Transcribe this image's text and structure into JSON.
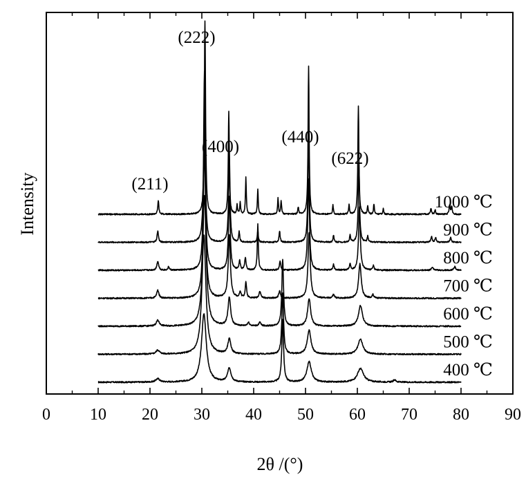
{
  "chart_data": {
    "type": "line",
    "title": "",
    "xlabel": "2θ /(°)",
    "ylabel": "Intensity",
    "xlim": [
      0,
      90
    ],
    "xticks": [
      0,
      10,
      20,
      30,
      40,
      50,
      60,
      70,
      80,
      90
    ],
    "x_range": [
      10,
      80
    ],
    "grid": false,
    "legend": "none",
    "line_color": "#000000",
    "series": [
      {
        "name": "400 ℃",
        "baseline": 0.0,
        "peaks": [
          [
            21.5,
            0.03,
            0.45
          ],
          [
            30.4,
            0.6,
            0.55
          ],
          [
            35.3,
            0.12,
            0.4
          ],
          [
            45.6,
            0.55,
            0.2
          ],
          [
            50.7,
            0.18,
            0.5
          ],
          [
            60.6,
            0.12,
            0.7
          ],
          [
            67.2,
            0.02,
            0.3
          ]
        ]
      },
      {
        "name": "500 ℃",
        "baseline": 0.4,
        "peaks": [
          [
            21.5,
            0.035,
            0.4
          ],
          [
            30.4,
            1.05,
            0.45
          ],
          [
            35.3,
            0.13,
            0.35
          ],
          [
            45.6,
            0.54,
            0.2
          ],
          [
            50.7,
            0.21,
            0.42
          ],
          [
            60.6,
            0.13,
            0.55
          ]
        ]
      },
      {
        "name": "600 ℃",
        "baseline": 0.8,
        "peaks": [
          [
            21.5,
            0.05,
            0.35
          ],
          [
            30.5,
            1.15,
            0.4
          ],
          [
            35.3,
            0.25,
            0.3
          ],
          [
            39.0,
            0.03,
            0.25
          ],
          [
            41.2,
            0.03,
            0.25
          ],
          [
            45.6,
            0.58,
            0.2
          ],
          [
            50.7,
            0.24,
            0.35
          ],
          [
            60.6,
            0.18,
            0.45
          ]
        ]
      },
      {
        "name": "700 ℃",
        "baseline": 1.2,
        "peaks": [
          [
            21.5,
            0.07,
            0.25
          ],
          [
            30.5,
            1.3,
            0.28
          ],
          [
            35.3,
            0.55,
            0.25
          ],
          [
            37.4,
            0.05,
            0.2
          ],
          [
            38.5,
            0.14,
            0.15
          ],
          [
            41.2,
            0.06,
            0.2
          ],
          [
            45.0,
            0.06,
            0.2
          ],
          [
            50.7,
            0.58,
            0.25
          ],
          [
            55.4,
            0.03,
            0.2
          ],
          [
            60.5,
            0.3,
            0.3
          ],
          [
            63.0,
            0.03,
            0.2
          ]
        ]
      },
      {
        "name": "800 ℃",
        "baseline": 1.6,
        "peaks": [
          [
            21.5,
            0.08,
            0.2
          ],
          [
            23.6,
            0.03,
            0.15
          ],
          [
            30.5,
            1.4,
            0.22
          ],
          [
            35.3,
            0.65,
            0.2
          ],
          [
            37.3,
            0.08,
            0.15
          ],
          [
            38.4,
            0.11,
            0.15
          ],
          [
            40.8,
            0.4,
            0.12
          ],
          [
            45.1,
            0.08,
            0.15
          ],
          [
            50.6,
            0.8,
            0.2
          ],
          [
            55.4,
            0.05,
            0.15
          ],
          [
            58.6,
            0.05,
            0.15
          ],
          [
            60.4,
            0.55,
            0.2
          ],
          [
            63.1,
            0.04,
            0.15
          ],
          [
            74.5,
            0.03,
            0.2
          ],
          [
            78.8,
            0.03,
            0.2
          ]
        ]
      },
      {
        "name": "900 ℃",
        "baseline": 2.0,
        "peaks": [
          [
            21.5,
            0.1,
            0.15
          ],
          [
            30.5,
            1.5,
            0.18
          ],
          [
            35.3,
            0.8,
            0.16
          ],
          [
            37.2,
            0.09,
            0.12
          ],
          [
            40.8,
            0.1,
            0.12
          ],
          [
            45.0,
            0.1,
            0.12
          ],
          [
            50.6,
            1.0,
            0.15
          ],
          [
            55.4,
            0.06,
            0.12
          ],
          [
            58.6,
            0.06,
            0.12
          ],
          [
            60.3,
            0.7,
            0.15
          ],
          [
            62.0,
            0.05,
            0.12
          ],
          [
            74.3,
            0.05,
            0.15
          ],
          [
            75.1,
            0.04,
            0.15
          ],
          [
            78.0,
            0.04,
            0.15
          ]
        ]
      },
      {
        "name": "1000 ℃",
        "baseline": 2.4,
        "peaks": [
          [
            21.6,
            0.12,
            0.12
          ],
          [
            30.6,
            1.7,
            0.14
          ],
          [
            35.2,
            0.9,
            0.12
          ],
          [
            36.8,
            0.08,
            0.1
          ],
          [
            37.4,
            0.1,
            0.1
          ],
          [
            38.5,
            0.32,
            0.1
          ],
          [
            40.8,
            0.22,
            0.1
          ],
          [
            44.7,
            0.14,
            0.1
          ],
          [
            45.3,
            0.12,
            0.1
          ],
          [
            48.6,
            0.06,
            0.1
          ],
          [
            50.6,
            1.3,
            0.12
          ],
          [
            55.3,
            0.08,
            0.1
          ],
          [
            58.4,
            0.08,
            0.1
          ],
          [
            60.2,
            0.95,
            0.12
          ],
          [
            62.0,
            0.07,
            0.1
          ],
          [
            63.2,
            0.09,
            0.1
          ],
          [
            65.0,
            0.05,
            0.1
          ],
          [
            74.2,
            0.05,
            0.12
          ],
          [
            75.0,
            0.04,
            0.12
          ],
          [
            77.8,
            0.08,
            0.12
          ],
          [
            78.2,
            0.07,
            0.12
          ]
        ]
      }
    ],
    "peak_annotations": [
      {
        "label": "(211)",
        "x": 21.6
      },
      {
        "label": "(222)",
        "x": 30.6
      },
      {
        "label": "(400)",
        "x": 35.2
      },
      {
        "label": "(440)",
        "x": 50.6
      },
      {
        "label": "(622)",
        "x": 60.2
      }
    ]
  }
}
